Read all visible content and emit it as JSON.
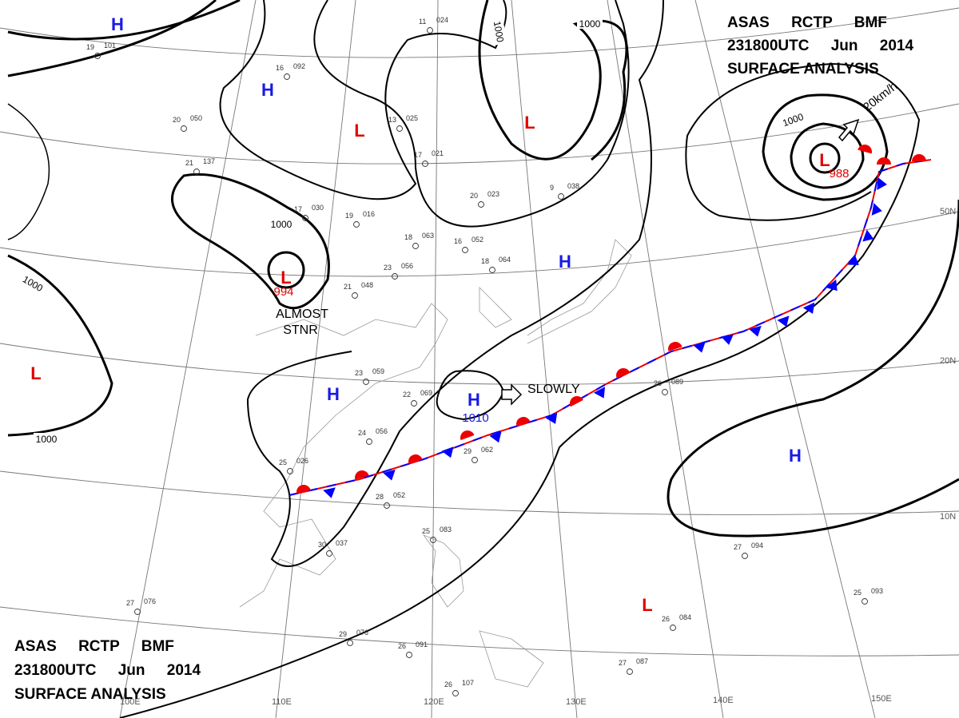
{
  "header_top": {
    "line1": "ASAS RCTP BMF",
    "line2": "231800UTC Jun 2014",
    "line3": "SURFACE ANALYSIS"
  },
  "header_bottom": {
    "line1": "ASAS RCTP BMF",
    "line2": "231800UTC Jun 2014",
    "line3": "SURFACE ANALYSIS"
  },
  "pressure_centers": [
    "H",
    "H",
    "L",
    "L",
    "L",
    "L",
    "L",
    "H",
    "H",
    "H",
    "H",
    "L"
  ],
  "center_values": [
    "994",
    "988",
    "1010"
  ],
  "isobar_labels": [
    "1000",
    "1000",
    "1000",
    "1000",
    "1000",
    "1000"
  ],
  "annotations": [
    "ALMOST",
    "STNR",
    "SLOWLY",
    "20km/h"
  ],
  "latitude_labels": [
    "50N",
    "20N",
    "10N"
  ],
  "longitude_labels": [
    "100E",
    "110E",
    "120E",
    "130E",
    "140E",
    "150E"
  ],
  "stations": [
    [
      "19",
      "101"
    ],
    [
      "16",
      "092"
    ],
    [
      "11",
      "024"
    ],
    [
      "13",
      "025"
    ],
    [
      "17",
      "021"
    ],
    [
      "20",
      "023"
    ],
    [
      "9",
      "038"
    ],
    [
      "17",
      "030"
    ],
    [
      "19",
      "016"
    ],
    [
      "23",
      "056"
    ],
    [
      "18",
      "063"
    ],
    [
      "16",
      "052"
    ],
    [
      "18",
      "064"
    ],
    [
      "21",
      "048"
    ],
    [
      "23",
      "059"
    ],
    [
      "22",
      "069"
    ],
    [
      "24",
      "056"
    ],
    [
      "25",
      "026"
    ],
    [
      "29",
      "062"
    ],
    [
      "28",
      "052"
    ],
    [
      "30",
      "037"
    ],
    [
      "27",
      "076"
    ],
    [
      "29",
      "076"
    ],
    [
      "26",
      "091"
    ],
    [
      "25",
      "083"
    ],
    [
      "26",
      "089"
    ],
    [
      "27",
      "094"
    ],
    [
      "25",
      "093"
    ],
    [
      "26",
      "084"
    ],
    [
      "27",
      "087"
    ],
    [
      "26",
      "107"
    ],
    [
      "20",
      "050"
    ],
    [
      "21",
      "137"
    ]
  ]
}
